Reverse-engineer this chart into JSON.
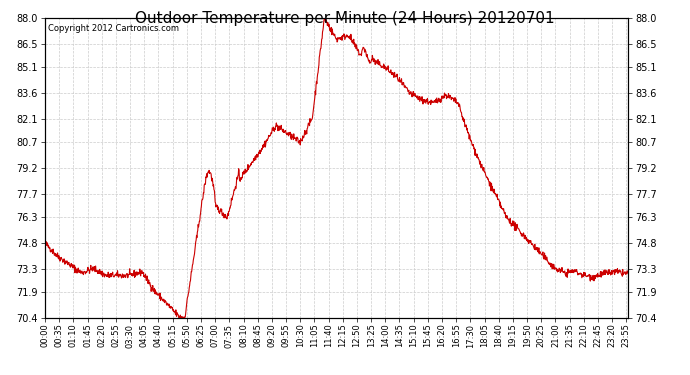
{
  "title": "Outdoor Temperature per Minute (24 Hours) 20120701",
  "copyright_text": "Copyright 2012 Cartronics.com",
  "line_color": "#cc0000",
  "background_color": "#ffffff",
  "grid_color": "#cccccc",
  "ylim": [
    70.4,
    88.0
  ],
  "yticks": [
    70.4,
    71.9,
    73.3,
    74.8,
    76.3,
    77.7,
    79.2,
    80.7,
    82.1,
    83.6,
    85.1,
    86.5,
    88.0
  ],
  "xtick_labels": [
    "00:00",
    "00:35",
    "01:10",
    "01:45",
    "02:20",
    "02:55",
    "03:30",
    "04:05",
    "04:40",
    "05:15",
    "05:50",
    "06:25",
    "07:00",
    "07:35",
    "08:10",
    "08:45",
    "09:20",
    "09:55",
    "10:30",
    "11:05",
    "11:40",
    "12:15",
    "12:50",
    "13:25",
    "14:00",
    "14:35",
    "15:10",
    "15:45",
    "16:20",
    "16:55",
    "17:30",
    "18:05",
    "18:40",
    "19:15",
    "19:50",
    "20:25",
    "21:00",
    "21:35",
    "22:10",
    "22:45",
    "23:20",
    "23:55"
  ],
  "num_points": 1440,
  "tick_interval": 35,
  "title_fontsize": 11,
  "copyright_fontsize": 6,
  "ytick_fontsize": 7,
  "xtick_fontsize": 6,
  "line_width": 0.8,
  "noise_std": 0.1,
  "noise_seed": 42
}
